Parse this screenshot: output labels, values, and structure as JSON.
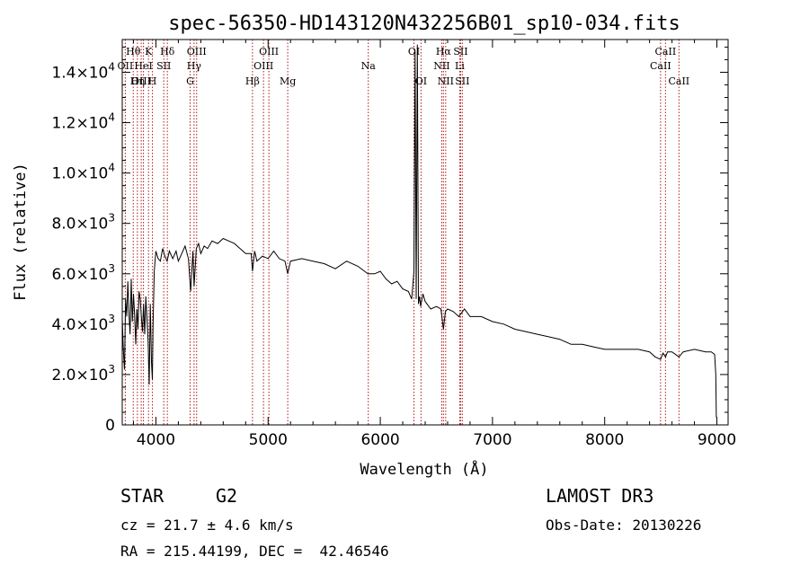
{
  "chart_data": {
    "type": "line",
    "title": "spec-56350-HD143120N432256B01_sp10-034.fits",
    "xlabel": "Wavelength (Å)",
    "ylabel": "Flux (relative)",
    "xlim": [
      3700,
      9100
    ],
    "ylim": [
      0,
      15300
    ],
    "x_ticks": [
      {
        "value": 4000,
        "label": "4000"
      },
      {
        "value": 5000,
        "label": "5000"
      },
      {
        "value": 6000,
        "label": "6000"
      },
      {
        "value": 7000,
        "label": "7000"
      },
      {
        "value": 8000,
        "label": "8000"
      },
      {
        "value": 9000,
        "label": "9000"
      }
    ],
    "y_ticks": [
      {
        "value": 0,
        "mant": "0",
        "exp": ""
      },
      {
        "value": 2000,
        "mant": "2.0×10",
        "exp": "3"
      },
      {
        "value": 4000,
        "mant": "4.0×10",
        "exp": "3"
      },
      {
        "value": 6000,
        "mant": "6.0×10",
        "exp": "3"
      },
      {
        "value": 8000,
        "mant": "8.0×10",
        "exp": "3"
      },
      {
        "value": 10000,
        "mant": "1.0×10",
        "exp": "4"
      },
      {
        "value": 12000,
        "mant": "1.2×10",
        "exp": "4"
      },
      {
        "value": 14000,
        "mant": "1.4×10",
        "exp": "4"
      }
    ],
    "series": [
      {
        "name": "flux",
        "x": [
          3700,
          3710,
          3720,
          3730,
          3740,
          3750,
          3760,
          3770,
          3780,
          3790,
          3800,
          3810,
          3820,
          3830,
          3840,
          3850,
          3860,
          3870,
          3880,
          3890,
          3900,
          3910,
          3920,
          3930,
          3940,
          3950,
          3960,
          3968,
          3975,
          3985,
          4000,
          4020,
          4040,
          4060,
          4080,
          4100,
          4120,
          4150,
          4180,
          4200,
          4230,
          4260,
          4290,
          4310,
          4330,
          4340,
          4360,
          4380,
          4400,
          4430,
          4460,
          4500,
          4550,
          4600,
          4650,
          4700,
          4750,
          4800,
          4850,
          4861,
          4880,
          4900,
          4950,
          5000,
          5050,
          5100,
          5150,
          5175,
          5200,
          5300,
          5400,
          5500,
          5600,
          5700,
          5800,
          5890,
          5950,
          6000,
          6050,
          6100,
          6150,
          6200,
          6250,
          6280,
          6300,
          6310,
          6320,
          6330,
          6340,
          6350,
          6360,
          6380,
          6400,
          6450,
          6500,
          6540,
          6563,
          6580,
          6600,
          6650,
          6700,
          6750,
          6800,
          6900,
          7000,
          7100,
          7200,
          7300,
          7400,
          7500,
          7600,
          7700,
          7800,
          7900,
          8000,
          8100,
          8200,
          8300,
          8400,
          8450,
          8498,
          8520,
          8542,
          8560,
          8600,
          8662,
          8700,
          8800,
          8900,
          8950,
          8980,
          8990,
          8995
        ],
        "y": [
          4200,
          3000,
          2200,
          5000,
          4300,
          5700,
          4400,
          3600,
          5800,
          4100,
          5200,
          4400,
          3200,
          4600,
          3800,
          5300,
          5000,
          4300,
          3700,
          4800,
          3600,
          5100,
          4200,
          3400,
          1600,
          4800,
          2500,
          1800,
          4000,
          6100,
          6900,
          6600,
          6500,
          7000,
          6700,
          6500,
          6900,
          6600,
          6900,
          6500,
          6800,
          7100,
          6600,
          5300,
          6900,
          5500,
          7000,
          7200,
          6800,
          7100,
          7000,
          7300,
          7200,
          7400,
          7300,
          7200,
          7000,
          6800,
          6800,
          6100,
          6900,
          6500,
          6700,
          6600,
          6900,
          6600,
          6500,
          6000,
          6500,
          6600,
          6500,
          6400,
          6200,
          6500,
          6300,
          6000,
          6000,
          6100,
          5800,
          5600,
          5700,
          5400,
          5300,
          5000,
          6100,
          14800,
          5000,
          15100,
          4800,
          5100,
          4700,
          5200,
          4900,
          4600,
          4700,
          4600,
          3800,
          4500,
          4600,
          4500,
          4300,
          4600,
          4300,
          4300,
          4100,
          4000,
          3800,
          3700,
          3600,
          3500,
          3400,
          3200,
          3200,
          3100,
          3000,
          3000,
          3000,
          3000,
          2900,
          2700,
          2600,
          2850,
          2700,
          2900,
          2900,
          2700,
          2900,
          3000,
          2900,
          2900,
          2800,
          2000,
          300
        ]
      }
    ],
    "spectral_lines": [
      {
        "name": "Hθ",
        "wavelength": 3798,
        "row": 1
      },
      {
        "name": "OII",
        "wavelength": 3727,
        "row": 2
      },
      {
        "name": "OIII",
        "wavelength": 3869,
        "row": 3
      },
      {
        "name": "Hη",
        "wavelength": 3835,
        "row": 3
      },
      {
        "name": "K",
        "wavelength": 3934,
        "row": 1
      },
      {
        "name": "HeI",
        "wavelength": 3889,
        "row": 2
      },
      {
        "name": "H",
        "wavelength": 3969,
        "row": 3
      },
      {
        "name": "SII",
        "wavelength": 4070,
        "row": 2
      },
      {
        "name": "Hδ",
        "wavelength": 4102,
        "row": 1
      },
      {
        "name": "OIII",
        "wavelength": 4363,
        "row": 1
      },
      {
        "name": "Hγ",
        "wavelength": 4340,
        "row": 2
      },
      {
        "name": "G",
        "wavelength": 4305,
        "row": 3
      },
      {
        "name": "Hβ",
        "wavelength": 4861,
        "row": 3
      },
      {
        "name": "OIII",
        "wavelength": 5007,
        "row": 1
      },
      {
        "name": "OIII",
        "wavelength": 4959,
        "row": 2
      },
      {
        "name": "Mg",
        "wavelength": 5175,
        "row": 3
      },
      {
        "name": "Na",
        "wavelength": 5893,
        "row": 2
      },
      {
        "name": "OI",
        "wavelength": 6300,
        "row": 1
      },
      {
        "name": "OI",
        "wavelength": 6363,
        "row": 3
      },
      {
        "name": "Hα",
        "wavelength": 6563,
        "row": 1
      },
      {
        "name": "NII",
        "wavelength": 6548,
        "row": 2
      },
      {
        "name": "NII",
        "wavelength": 6583,
        "row": 3
      },
      {
        "name": "SII",
        "wavelength": 6716,
        "row": 1
      },
      {
        "name": "Li",
        "wavelength": 6708,
        "row": 2
      },
      {
        "name": "SII",
        "wavelength": 6731,
        "row": 3
      },
      {
        "name": "CaII",
        "wavelength": 8542,
        "row": 1
      },
      {
        "name": "CaII",
        "wavelength": 8498,
        "row": 2
      },
      {
        "name": "CaII",
        "wavelength": 8662,
        "row": 3
      }
    ]
  },
  "info": {
    "object_class": "STAR",
    "subclass": "G2",
    "survey": "LAMOST DR3",
    "redshift": "cz = 21.7 ± 4.6 km/s",
    "obs_date": "Obs-Date: 20130226",
    "coords": "RA = 215.44199, DEC =  42.46546"
  },
  "colors": {
    "line_marker": "#b01818",
    "spectrum": "#000000",
    "axes": "#000000"
  }
}
